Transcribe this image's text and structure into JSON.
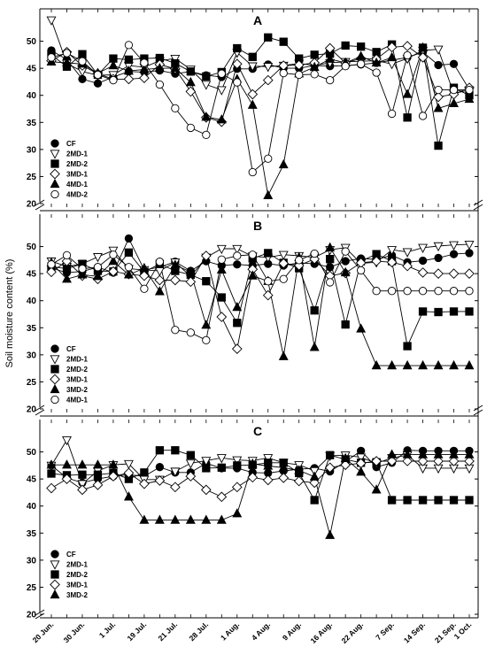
{
  "chart_data": {
    "type": "line",
    "ylabel": "Soil moisture content (%)",
    "ylim": [
      20,
      55
    ],
    "yticks": [
      20,
      25,
      30,
      35,
      40,
      45,
      50
    ],
    "x_tick_labels": [
      "20 Jun.",
      "30 Jun.",
      "1 Jul.",
      "19 Jul.",
      "21 Jul.",
      "28 Jul.",
      "1 Aug.",
      "4 Aug.",
      "9 Aug.",
      "16 Aug.",
      "22 Aug.",
      "7 Sep.",
      "14 Sep.",
      "21 Sep.",
      "1 Oct."
    ],
    "x_points": 28,
    "marker_colors": {
      "filled": "#000000",
      "open": "#ffffff"
    },
    "panels": [
      {
        "label": "A",
        "legend": [
          "CF",
          "2MD-1",
          "2MD-2",
          "3MD-1",
          "4MD-1",
          "4MD-2"
        ],
        "series": [
          {
            "name": "CF",
            "marker": "circle",
            "fill": "filled",
            "values": [
              48.3,
              46.6,
              43.0,
              42.2,
              43.4,
              44.4,
              44.3,
              44.6,
              44.0,
              44.4,
              43.7,
              43.4,
              44.9,
              44.9,
              45.7,
              45.0,
              45.0,
              45.5,
              45.4,
              45.5,
              45.7,
              46.0,
              46.5,
              47.0,
              48.0,
              45.6,
              45.8,
              41.1
            ]
          },
          {
            "name": "2MD-1",
            "marker": "triangle-down",
            "fill": "open",
            "values": [
              53.9,
              45.9,
              44.4,
              43.7,
              43.8,
              45.5,
              45.2,
              46.4,
              46.8,
              44.8,
              42.0,
              41.0,
              47.9,
              45.4,
              45.3,
              45.5,
              45.9,
              45.5,
              46.0,
              46.2,
              46.3,
              46.4,
              45.8,
              46.8,
              48.3,
              48.5,
              40.3,
              41.0
            ]
          },
          {
            "name": "2MD-2",
            "marker": "square",
            "fill": "filled",
            "values": [
              47.5,
              45.3,
              47.6,
              43.8,
              46.8,
              46.6,
              46.8,
              46.9,
              45.9,
              44.4,
              43.5,
              44.3,
              48.7,
              47.1,
              50.7,
              49.9,
              46.8,
              47.5,
              47.7,
              49.2,
              49.0,
              48.0,
              49.4,
              35.9,
              48.8,
              30.7,
              41.4,
              40.0
            ]
          },
          {
            "name": "3MD-1",
            "marker": "diamond",
            "fill": "open",
            "values": [
              46.4,
              48.0,
              45.5,
              44.0,
              43.0,
              43.0,
              43.2,
              45.7,
              44.9,
              40.7,
              35.9,
              35.1,
              45.8,
              40.2,
              42.8,
              45.5,
              45.6,
              46.0,
              48.7,
              46.0,
              46.8,
              46.7,
              48.9,
              49.1,
              47.0,
              39.7,
              40.2,
              41.4
            ]
          },
          {
            "name": "4MD-1",
            "marker": "triangle-up",
            "fill": "filled",
            "values": [
              46.2,
              46.0,
              45.8,
              44.1,
              45.5,
              44.5,
              44.8,
              45.0,
              45.0,
              42.4,
              36.0,
              35.5,
              43.0,
              38.2,
              21.5,
              27.2,
              44.0,
              45.2,
              46.7,
              46.0,
              47.2,
              46.0,
              47.0,
              40.2,
              48.8,
              37.6,
              38.5,
              39.3
            ]
          },
          {
            "name": "4MD-2",
            "marker": "circle",
            "fill": "open",
            "values": [
              47.0,
              47.8,
              46.3,
              43.8,
              42.8,
              49.3,
              46.0,
              42.0,
              37.6,
              34.0,
              32.7,
              44.0,
              42.4,
              25.8,
              28.3,
              44.1,
              43.8,
              43.9,
              42.8,
              45.4,
              45.8,
              44.2,
              36.6,
              47.4,
              36.2,
              41.0,
              41.0,
              41.0
            ]
          }
        ]
      },
      {
        "label": "B",
        "legend": [
          "CF",
          "2MD-1",
          "2MD-2",
          "3MD-1",
          "3MD-2",
          "4MD-1"
        ],
        "series": [
          {
            "name": "CF",
            "marker": "circle",
            "fill": "filled",
            "values": [
              46.0,
              45.2,
              45.4,
              46.2,
              45.2,
              51.5,
              45.7,
              46.2,
              47.2,
              45.5,
              47.3,
              46.5,
              46.7,
              46.5,
              46.8,
              46.5,
              47.0,
              46.8,
              46.2,
              47.3,
              47.8,
              47.6,
              48.4,
              47.1,
              47.4,
              47.9,
              48.6,
              48.8
            ]
          },
          {
            "name": "2MD-1",
            "marker": "triangle-down",
            "fill": "open",
            "values": [
              47.3,
              46.3,
              46.8,
              48.1,
              49.3,
              45.9,
              45.7,
              45.5,
              47.1,
              44.5,
              48.0,
              49.6,
              49.6,
              48.2,
              48.0,
              48.5,
              48.3,
              48.0,
              49.4,
              49.8,
              46.9,
              47.1,
              49.4,
              49.0,
              49.8,
              50.1,
              50.3,
              50.4
            ]
          },
          {
            "name": "2MD-2",
            "marker": "square",
            "fill": "filled",
            "values": [
              46.3,
              45.9,
              46.8,
              45.5,
              45.4,
              48.9,
              45.3,
              46.8,
              45.5,
              44.8,
              43.6,
              40.6,
              35.9,
              47.8,
              48.8,
              47.0,
              46.0,
              38.2,
              47.7,
              35.6,
              47.3,
              48.6,
              47.3,
              31.6,
              38.0,
              37.9,
              38.0,
              38.0
            ]
          },
          {
            "name": "3MD-1",
            "marker": "diamond",
            "fill": "open",
            "values": [
              45.3,
              47.3,
              44.6,
              44.0,
              45.4,
              44.9,
              44.6,
              43.8,
              43.8,
              43.5,
              48.3,
              37.0,
              31.1,
              45.8,
              41.0,
              46.9,
              46.5,
              47.7,
              44.6,
              45.1,
              47.0,
              47.3,
              47.1,
              46.4,
              45.2,
              45.0,
              45.0,
              45.0
            ]
          },
          {
            "name": "3MD-2",
            "marker": "triangle-up",
            "fill": "filled",
            "values": [
              47.0,
              44.0,
              44.8,
              44.5,
              47.3,
              44.8,
              46.0,
              41.7,
              46.6,
              45.3,
              35.5,
              45.7,
              38.8,
              44.6,
              43.6,
              29.7,
              48.0,
              31.4,
              49.8,
              45.2,
              34.8,
              28.0,
              28.0,
              28.0,
              28.0,
              28.0,
              28.0,
              28.0
            ]
          },
          {
            "name": "4MD-1",
            "marker": "circle",
            "fill": "open",
            "values": [
              46.7,
              48.4,
              45.9,
              46.2,
              48.5,
              46.2,
              42.2,
              47.2,
              34.6,
              34.1,
              32.7,
              47.6,
              48.3,
              48.5,
              43.6,
              44.0,
              47.5,
              48.7,
              43.4,
              49.1,
              45.6,
              41.8,
              41.8,
              41.8,
              41.8,
              41.8,
              41.8,
              41.8
            ]
          }
        ]
      },
      {
        "label": "C",
        "legend": [
          "CF",
          "2MD-1",
          "2MD-2",
          "3MD-1",
          "3MD-2"
        ],
        "series": [
          {
            "name": "CF",
            "marker": "circle",
            "fill": "filled",
            "values": [
              47.5,
              45.2,
              44.3,
              45.0,
              45.5,
              45.8,
              45.5,
              47.2,
              46.2,
              46.2,
              47.9,
              47.0,
              47.0,
              46.2,
              46.1,
              46.5,
              46.8,
              47.0,
              46.4,
              48.2,
              50.2,
              47.2,
              48.0,
              50.3,
              50.2,
              50.2,
              50.2,
              50.2
            ]
          },
          {
            "name": "2MD-1",
            "marker": "triangle-down",
            "fill": "open",
            "values": [
              47.5,
              52.2,
              44.1,
              46.5,
              47.6,
              47.8,
              44.9,
              44.9,
              46.4,
              47.9,
              48.4,
              48.9,
              48.5,
              48.4,
              48.9,
              48.0,
              47.6,
              46.5,
              49.3,
              49.4,
              49.0,
              47.9,
              48.9,
              49.4,
              47.0,
              47.0,
              47.0,
              47.0
            ]
          },
          {
            "name": "2MD-2",
            "marker": "square",
            "fill": "filled",
            "values": [
              46.0,
              45.7,
              45.8,
              45.8,
              46.1,
              45.0,
              46.2,
              50.3,
              50.3,
              49.4,
              47.0,
              47.1,
              47.5,
              47.6,
              48.0,
              48.0,
              46.1,
              41.1,
              49.4,
              48.6,
              48.0,
              48.1,
              41.1,
              41.1,
              41.1,
              41.1,
              41.1,
              41.1
            ]
          },
          {
            "name": "3MD-1",
            "marker": "diamond",
            "fill": "open",
            "values": [
              43.3,
              45.0,
              43.0,
              43.9,
              45.5,
              46.1,
              44.1,
              44.7,
              43.5,
              45.5,
              43.0,
              41.7,
              43.5,
              45.3,
              44.8,
              45.2,
              44.6,
              44.3,
              47.1,
              47.6,
              47.9,
              48.3,
              48.3,
              48.3,
              48.3,
              48.3,
              48.3,
              48.3
            ]
          },
          {
            "name": "3MD-2",
            "marker": "triangle-up",
            "fill": "filled",
            "values": [
              47.6,
              47.6,
              47.6,
              47.6,
              47.6,
              41.7,
              37.4,
              37.4,
              37.4,
              37.4,
              37.4,
              37.4,
              38.6,
              47.8,
              47.4,
              47.1,
              46.6,
              45.4,
              34.6,
              48.8,
              46.3,
              43.0,
              49.5,
              49.5,
              49.5,
              49.5,
              49.5,
              49.5
            ]
          }
        ]
      }
    ]
  }
}
